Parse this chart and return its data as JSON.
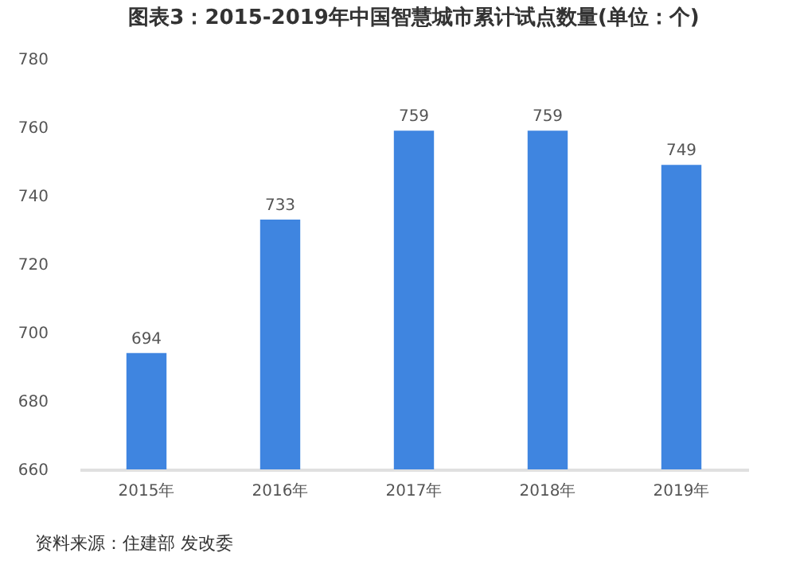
{
  "chart_data": {
    "type": "bar",
    "title": "图表3：2015-2019年中国智慧城市累计试点数量(单位：个)",
    "categories": [
      "2015年",
      "2016年",
      "2017年",
      "2018年",
      "2019年"
    ],
    "values": [
      694,
      733,
      759,
      759,
      749
    ],
    "color": "#3f85e0",
    "ylim": [
      660,
      780
    ],
    "yticks": [
      660,
      680,
      700,
      720,
      740,
      760,
      780
    ],
    "data_labels": true,
    "grid": false,
    "annotations": [
      "资料来源：住建部 发改委"
    ]
  }
}
